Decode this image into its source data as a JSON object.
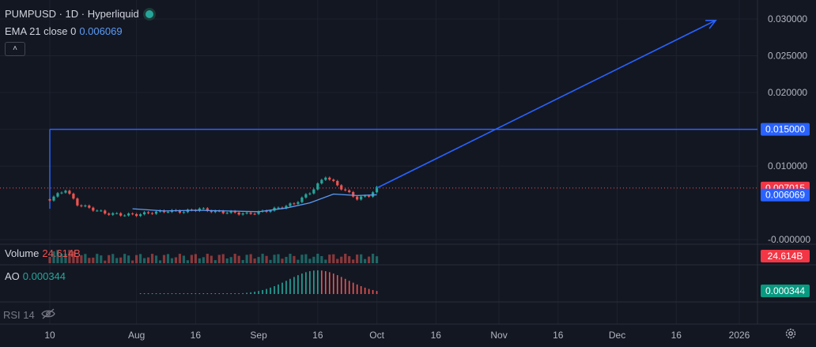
{
  "header": {
    "symbol_line": "PUMPUSD · 1D · Hyperliquid",
    "ema_label": "EMA 21 close 0",
    "ema_value": "0.006069"
  },
  "panes": {
    "volume_label": "Volume",
    "volume_value": "24.614B",
    "ao_label": "AO",
    "ao_value": "0.000344",
    "rsi_label": "RSI 14"
  },
  "colors": {
    "background": "#131722",
    "up": "#26a69a",
    "down": "#ef5350",
    "ema": "#5b9cf6",
    "drawing": "#2962ff",
    "grid": "#1e222d"
  },
  "chart_data": {
    "type": "line",
    "symbol": "PUMPUSD",
    "interval": "1D",
    "exchange": "Hyperliquid",
    "y_axis": {
      "ticks": [
        "0.030000",
        "0.025000",
        "0.020000",
        "0.015000",
        "0.010000",
        "-0.000000"
      ],
      "tick_values": [
        0.03,
        0.025,
        0.02,
        0.015,
        0.01,
        0.0
      ],
      "ylim": [
        -0.0003,
        0.0315
      ]
    },
    "x_axis": {
      "ticks": [
        "10",
        "Aug",
        "16",
        "Sep",
        "16",
        "Oct",
        "16",
        "Nov",
        "16",
        "Dec",
        "16",
        "2026"
      ],
      "tick_dates": [
        "2025-07-10",
        "2025-08-01",
        "2025-08-16",
        "2025-09-01",
        "2025-09-16",
        "2025-10-01",
        "2025-10-16",
        "2025-11-01",
        "2025-11-16",
        "2025-12-01",
        "2025-12-16",
        "2026-01-01"
      ]
    },
    "close_series": {
      "dates": [
        "2025-07-10",
        "2025-07-14",
        "2025-07-17",
        "2025-07-20",
        "2025-07-24",
        "2025-07-28",
        "2025-08-01",
        "2025-08-05",
        "2025-08-09",
        "2025-08-13",
        "2025-08-17",
        "2025-08-21",
        "2025-08-25",
        "2025-08-29",
        "2025-09-02",
        "2025-09-06",
        "2025-09-10",
        "2025-09-14",
        "2025-09-18",
        "2025-09-22",
        "2025-09-26",
        "2025-09-29",
        "2025-10-01"
      ],
      "values": [
        0.0055,
        0.0068,
        0.0048,
        0.0043,
        0.0036,
        0.0034,
        0.0034,
        0.0037,
        0.0039,
        0.0038,
        0.0042,
        0.0038,
        0.0037,
        0.0035,
        0.0038,
        0.0043,
        0.0049,
        0.0064,
        0.0086,
        0.007,
        0.0056,
        0.006,
        0.007
      ]
    },
    "ema_series": {
      "name": "EMA 21 close 0",
      "dates": [
        "2025-07-31",
        "2025-08-08",
        "2025-08-16",
        "2025-08-24",
        "2025-09-01",
        "2025-09-08",
        "2025-09-14",
        "2025-09-20",
        "2025-09-26",
        "2025-10-01"
      ],
      "values": [
        0.0042,
        0.0039,
        0.004,
        0.0039,
        0.0038,
        0.0043,
        0.005,
        0.0062,
        0.006,
        0.0061
      ]
    },
    "drawings": {
      "horizontal_level": 0.015,
      "horizontal_start_date": "2025-07-10",
      "arrow_start": {
        "date": "2025-10-01",
        "value": 0.00702
      },
      "arrow_end": {
        "date": "2025-12-26",
        "value": 0.0298
      }
    },
    "price_labels": [
      {
        "text": "0.015000",
        "value": 0.015,
        "color": "#2962ff"
      },
      {
        "text": "0.007015",
        "value": 0.007015,
        "color": "#f23645"
      },
      {
        "text": "0.006069",
        "value": 0.006069,
        "color": "#2962ff"
      }
    ],
    "pane_labels": [
      {
        "text": "24.614B",
        "color": "#f23645"
      },
      {
        "text": "0.000344",
        "color": "#089981"
      }
    ]
  }
}
